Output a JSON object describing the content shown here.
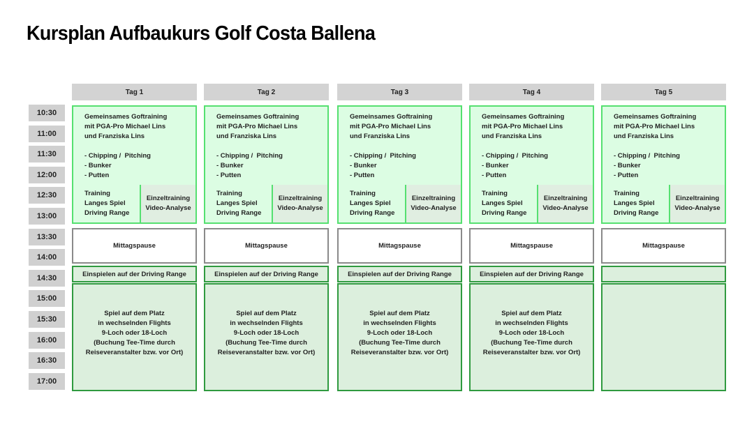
{
  "title": "Kursplan Aufbaukurs Golf Costa Ballena",
  "times": [
    "10:30",
    "11:00",
    "11:30",
    "12:00",
    "12:30",
    "13:00",
    "13:30",
    "14:00",
    "14:30",
    "15:00",
    "15:30",
    "16:00",
    "16:30",
    "17:00"
  ],
  "colors": {
    "morning_bg": "#dcfde3",
    "morning_border": "#55e070",
    "afternoon_bg": "#dcefdd",
    "afternoon_border": "#2f9a3f",
    "header_bg": "#d3d3d3"
  },
  "days": [
    {
      "label": "Tag 1",
      "morning": "Gemeinsames Goftraining\nmit PGA-Pro Michael Lins\nund Franziska Lins\n\n- Chipping /  Pitching\n- Bunker\n- Putten",
      "training": "Training\nLanges Spiel\nDriving Range",
      "einzel": "Einzeltraining\nVideo-Analyse",
      "pause": "Mittagspause",
      "einspielen": "Einspielen auf der Driving Range",
      "spiel": "Spiel auf dem Platz\nin wechselnden Flights\n9-Loch oder 18-Loch\n(Buchung Tee-Time durch\nReiseveranstalter bzw. vor Ort)"
    },
    {
      "label": "Tag 2",
      "morning": "Gemeinsames Goftraining\nmit PGA-Pro Michael Lins\nund Franziska Lins\n\n- Chipping /  Pitching\n- Bunker\n- Putten",
      "training": "Training\nLanges Spiel\nDriving Range",
      "einzel": "Einzeltraining\nVideo-Analyse",
      "pause": "Mittagspause",
      "einspielen": "Einspielen auf der Driving Range",
      "spiel": "Spiel auf dem Platz\nin wechselnden Flights\n9-Loch oder 18-Loch\n(Buchung Tee-Time durch\nReiseveranstalter bzw. vor Ort)"
    },
    {
      "label": "Tag 3",
      "morning": "Gemeinsames Goftraining\nmit PGA-Pro Michael Lins\nund Franziska Lins\n\n- Chipping /  Pitching\n- Bunker\n- Putten",
      "training": "Training\nLanges Spiel\nDriving Range",
      "einzel": "Einzeltraining\nVideo-Analyse",
      "pause": "Mittagspause",
      "einspielen": "Einspielen auf der Driving Range",
      "spiel": "Spiel auf dem Platz\nin wechselnden Flights\n9-Loch oder 18-Loch\n(Buchung Tee-Time durch\nReiseveranstalter bzw. vor Ort)"
    },
    {
      "label": "Tag 4",
      "morning": "Gemeinsames Goftraining\nmit PGA-Pro Michael Lins\nund Franziska Lins\n\n- Chipping /  Pitching\n- Bunker\n- Putten",
      "training": "Training\nLanges Spiel\nDriving Range",
      "einzel": "Einzeltraining\nVideo-Analyse",
      "pause": "Mittagspause",
      "einspielen": "Einspielen auf der Driving Range",
      "spiel": "Spiel auf dem Platz\nin wechselnden Flights\n9-Loch oder 18-Loch\n(Buchung Tee-Time durch\nReiseveranstalter bzw. vor Ort)"
    },
    {
      "label": "Tag 5",
      "morning": "Gemeinsames Goftraining\nmit PGA-Pro Michael Lins\nund Franziska Lins\n\n- Chipping /  Pitching\n- Bunker\n- Putten",
      "training": "Training\nLanges Spiel\nDriving Range",
      "einzel": "Einzeltraining\nVideo-Analyse",
      "pause": "Mittagspause",
      "einspielen": "",
      "spiel": ""
    }
  ]
}
